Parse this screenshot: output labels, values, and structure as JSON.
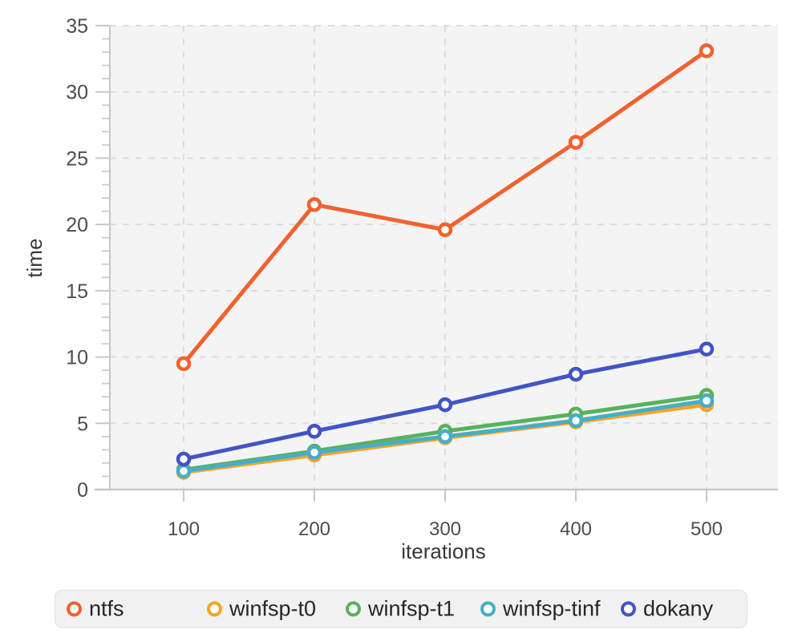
{
  "chart_data": {
    "type": "line",
    "title": "",
    "xlabel": "iterations",
    "ylabel": "time",
    "x": [
      100,
      200,
      300,
      400,
      500
    ],
    "series": [
      {
        "name": "ntfs",
        "color": "#f2612d",
        "values": [
          9.5,
          21.5,
          19.6,
          26.2,
          33.1
        ]
      },
      {
        "name": "winfsp-t0",
        "color": "#f3a52b",
        "values": [
          1.3,
          2.6,
          3.9,
          5.1,
          6.4
        ]
      },
      {
        "name": "winfsp-t1",
        "color": "#58b259",
        "values": [
          1.5,
          2.9,
          4.4,
          5.7,
          7.1
        ]
      },
      {
        "name": "winfsp-tinf",
        "color": "#47adc6",
        "values": [
          1.4,
          2.8,
          4.0,
          5.2,
          6.7
        ]
      },
      {
        "name": "dokany",
        "color": "#4254c5",
        "values": [
          2.3,
          4.4,
          6.4,
          8.7,
          10.6
        ]
      }
    ],
    "xticks": [
      100,
      200,
      300,
      400,
      500
    ],
    "yticks": [
      0,
      5,
      10,
      15,
      20,
      25,
      30,
      35
    ],
    "y_minor_step": 1,
    "xlim": [
      44,
      555
    ],
    "ylim": [
      0,
      35
    ],
    "grid": "dashed",
    "legend_position": "bottom",
    "marker": "open-circle"
  },
  "styles": {
    "plot_background": "#f4f4f5",
    "gridline_color": "#dcdcdc",
    "axis_color": "#c7c7c7",
    "tick_label_color": "#4d4d4d",
    "axis_title_color": "#383838",
    "legend_background": "#f1f1f2",
    "legend_border": "#e2e2e2",
    "legend_text_color": "#262626"
  }
}
